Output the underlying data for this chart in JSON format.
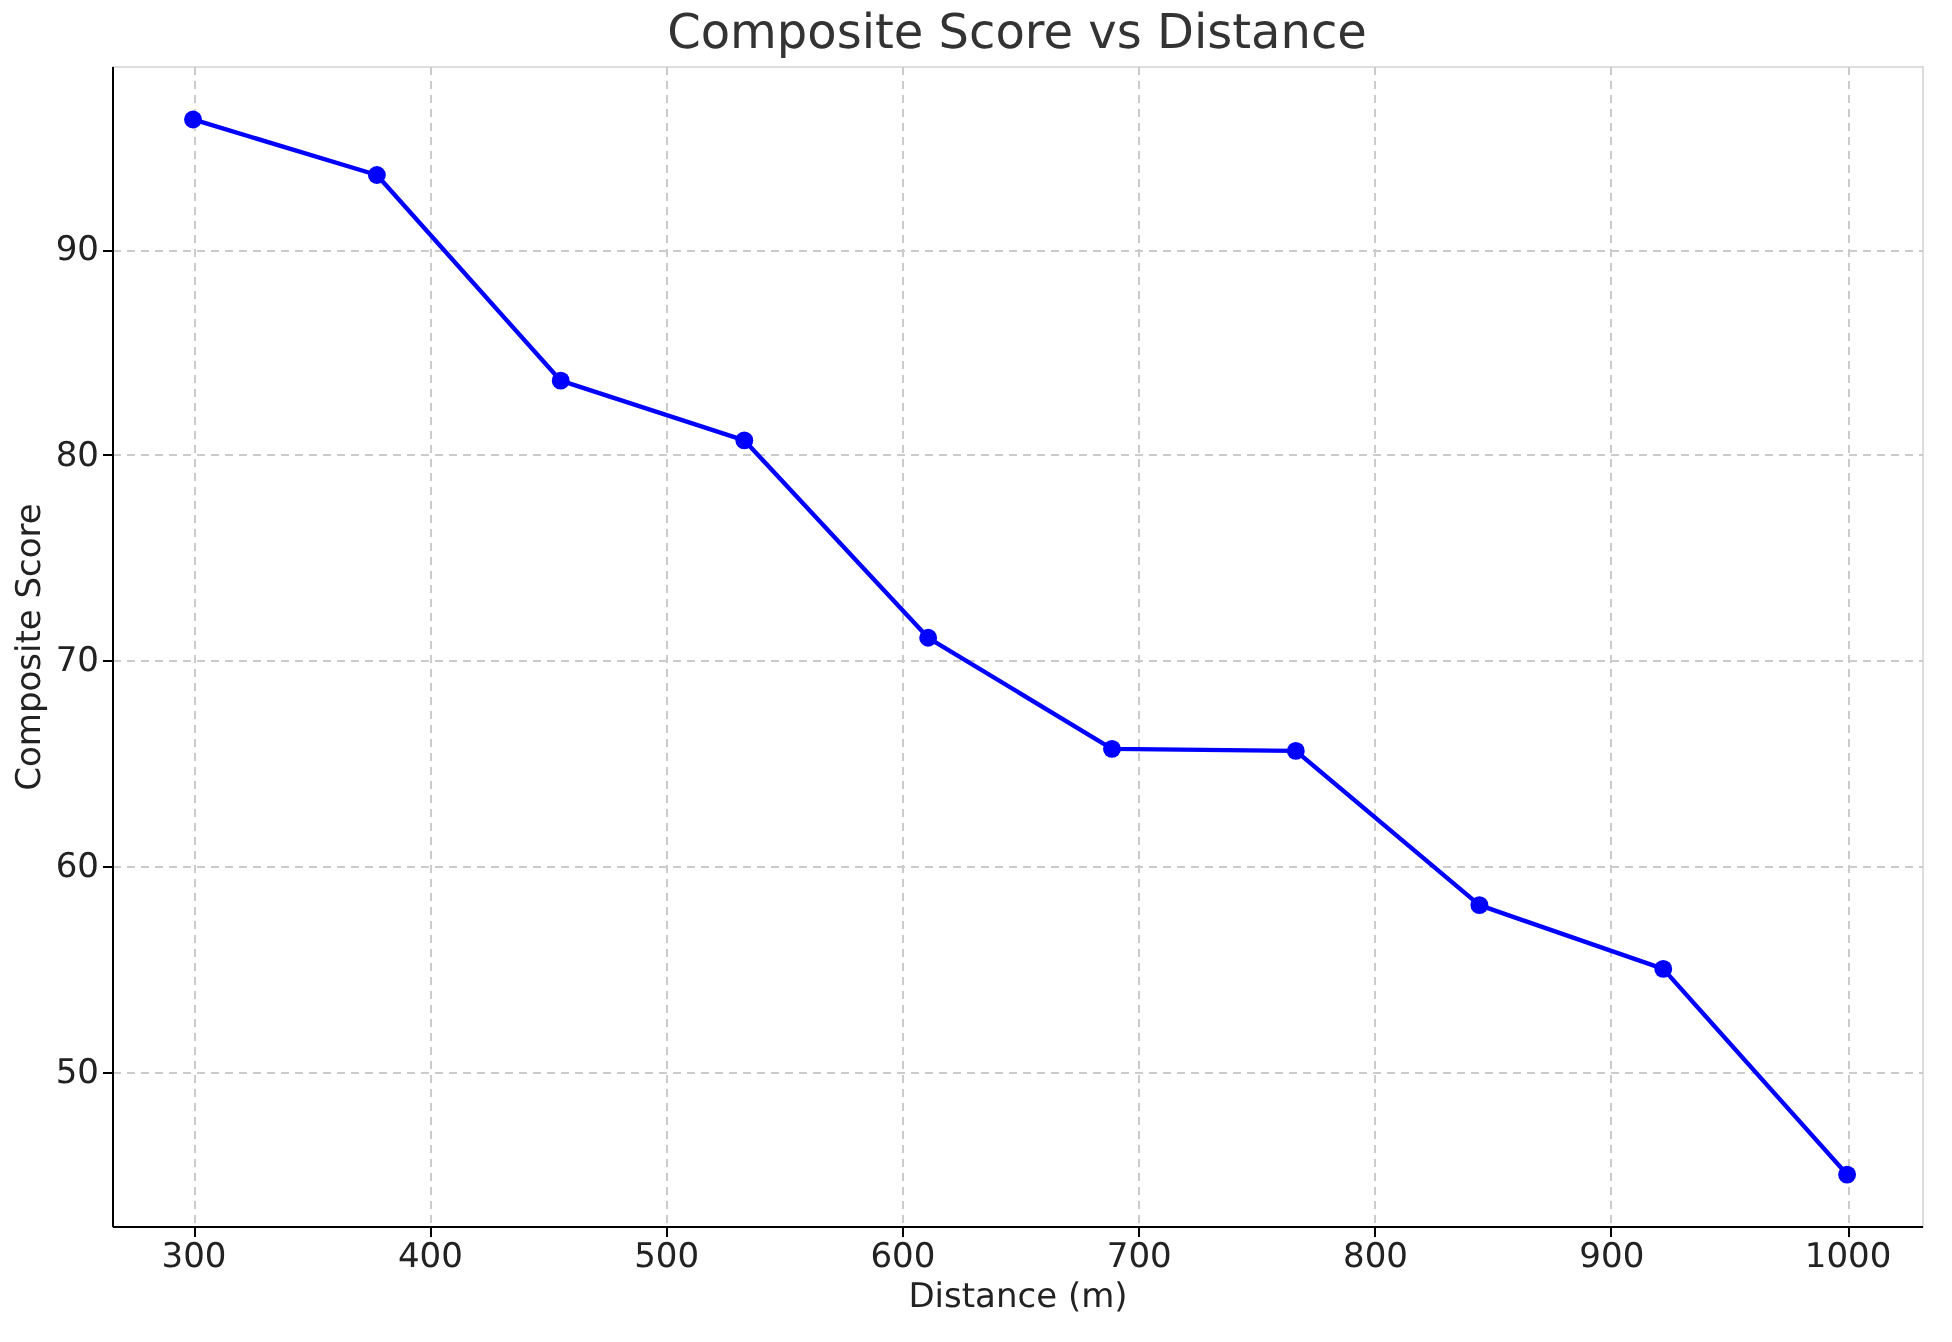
{
  "chart_data": {
    "type": "line",
    "title": "Composite Score vs Distance",
    "xlabel": "Distance (m)",
    "ylabel": "Composite Score",
    "x": [
      300,
      377.8,
      455.6,
      533.3,
      611.1,
      688.9,
      766.7,
      844.4,
      922.2,
      1000
    ],
    "series": [
      {
        "color": "#0000ff",
        "values": [
          96.3,
          93.6,
          83.6,
          80.7,
          71.1,
          65.7,
          65.6,
          58.1,
          55.0,
          45.0
        ]
      }
    ],
    "xlim": [
      265.7,
      1031.7
    ],
    "xticks": [
      300,
      400,
      500,
      600,
      700,
      800,
      900,
      1000
    ],
    "ylim": [
      42.5,
      98.9
    ],
    "yticks": [
      50,
      60,
      70,
      80,
      90
    ],
    "grid": true,
    "marker": "circle",
    "line_style": "solid"
  }
}
